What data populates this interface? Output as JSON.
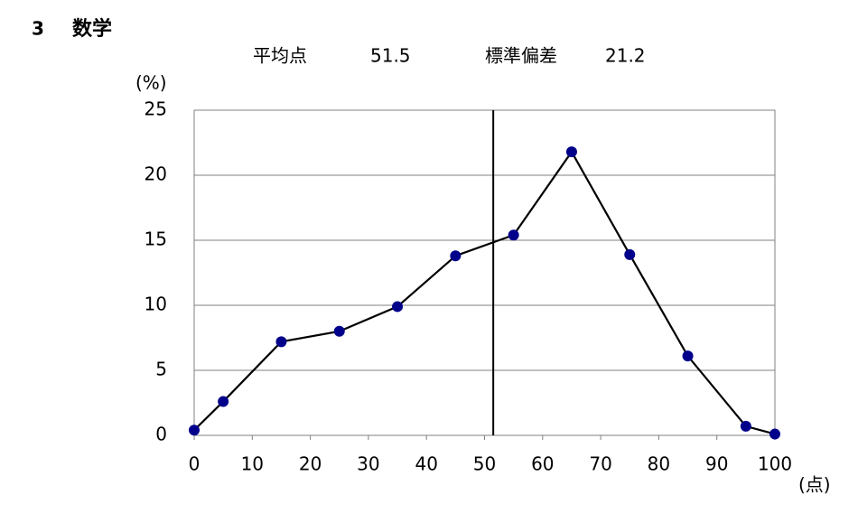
{
  "header": {
    "number": "3",
    "title": "数学"
  },
  "chart_data": {
    "type": "line",
    "stats": {
      "mean_label": "平均点",
      "mean": 51.5,
      "sd_label": "標準偏差",
      "sd": 21.2
    },
    "y_unit": "(%)",
    "x_unit": "(点)",
    "x": [
      0,
      5,
      15,
      25,
      35,
      45,
      55,
      65,
      75,
      85,
      95,
      100
    ],
    "values": [
      0.4,
      2.6,
      7.2,
      8.0,
      9.9,
      13.8,
      15.4,
      21.8,
      13.9,
      6.1,
      0.7,
      0.1
    ],
    "line_color": "#000000",
    "marker_color": "#00008b",
    "xlim": [
      0,
      100
    ],
    "xticks": [
      0,
      10,
      20,
      30,
      40,
      50,
      60,
      70,
      80,
      90,
      100
    ],
    "ylim": [
      0,
      25
    ],
    "yticks": [
      0,
      5,
      10,
      15,
      20,
      25
    ],
    "grid": true
  }
}
